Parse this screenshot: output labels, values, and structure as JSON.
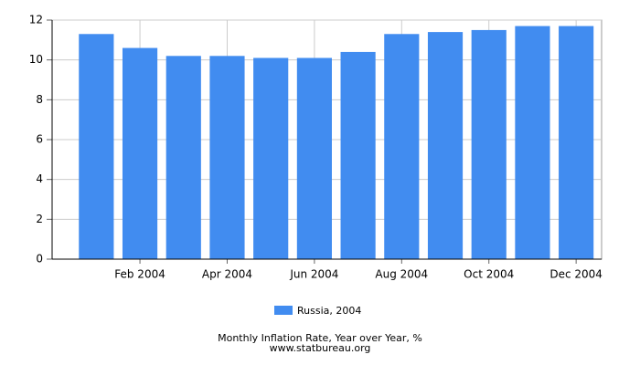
{
  "chart_data": {
    "type": "bar",
    "title": "Monthly Inflation Rate, Year over Year, %",
    "subtitle": "www.statbureau.org",
    "categories": [
      null,
      "Feb 2004",
      null,
      "Apr 2004",
      null,
      "Jun 2004",
      null,
      "Aug 2004",
      null,
      "Oct 2004",
      null,
      "Dec 2004"
    ],
    "series": [
      {
        "name": "Russia, 2004",
        "color": "#418cf0",
        "values": [
          11.3,
          10.6,
          10.2,
          10.2,
          10.1,
          10.1,
          10.4,
          11.3,
          11.4,
          11.5,
          11.7,
          11.7
        ]
      }
    ],
    "ylim": [
      0,
      12
    ],
    "yticks": [
      0,
      2,
      4,
      6,
      8,
      10,
      12
    ],
    "grid": true
  }
}
